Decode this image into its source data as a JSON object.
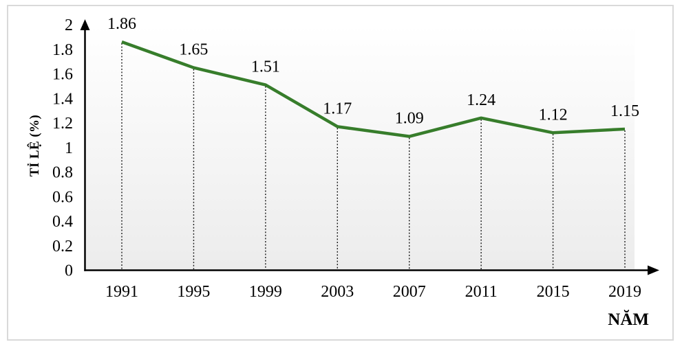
{
  "colors": {
    "line": "#377D2B",
    "axis": "#000000",
    "dropline": "#1a1a1a",
    "frame_border": "#D9D9D9",
    "plot_gradient_top": "#FFFFFF",
    "plot_gradient_bottom": "#ECECEC",
    "text": "#000000"
  },
  "chart_data": {
    "type": "line",
    "title": "",
    "categories": [
      "1991",
      "1995",
      "1999",
      "2003",
      "2007",
      "2011",
      "2015",
      "2019"
    ],
    "values": [
      1.86,
      1.65,
      1.51,
      1.17,
      1.09,
      1.24,
      1.12,
      1.15
    ],
    "point_labels": [
      "1.86",
      "1.65",
      "1.51",
      "1.17",
      "1.09",
      "1.24",
      "1.12",
      "1.15"
    ],
    "xlabel": "NĂM",
    "ylabel": "TỈ LỆ (%)",
    "ylim": [
      0,
      2
    ],
    "y_tick_labels": [
      "0",
      "0.2",
      "0.4",
      "0.6",
      "0.8",
      "1",
      "1.2",
      "1.4",
      "1.6",
      "1.8",
      "2"
    ],
    "grid": false,
    "legend": false,
    "markers": false,
    "droplines": "dotted",
    "axis_arrows": true
  }
}
